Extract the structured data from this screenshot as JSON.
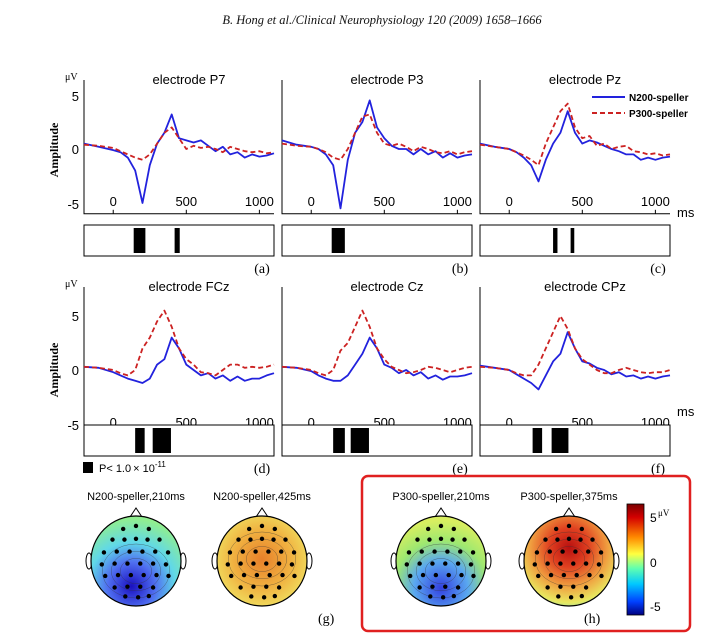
{
  "header": "B. Hong et al./Clinical Neurophysiology 120 (2009) 1658–1666",
  "legend": {
    "n200": "N200-speller",
    "p300": "P300-speller",
    "n200_color": "#2222dd",
    "p300_color": "#cc2222"
  },
  "sig_legend": {
    "prefix": "P< 1.0",
    "times": "×",
    "base": " 10",
    "exp": "-11"
  },
  "axes": {
    "unit": "μV",
    "ylabel": "Amplitude",
    "ms": "ms",
    "yticks": [
      "5",
      "0",
      "-5"
    ],
    "xticks": [
      "0",
      "500",
      "1000"
    ]
  },
  "panels": [
    {
      "title": "electrode P7",
      "label": "(a)",
      "sig": [
        [
          140,
          220
        ],
        [
          420,
          455
        ]
      ]
    },
    {
      "title": "electrode P3",
      "label": "(b)",
      "sig": [
        [
          140,
          230
        ]
      ]
    },
    {
      "title": "electrode Pz",
      "label": "(c)",
      "sig": [
        [
          300,
          330
        ],
        [
          420,
          445
        ]
      ]
    },
    {
      "title": "electrode FCz",
      "label": "(d)",
      "sig": [
        [
          150,
          215
        ],
        [
          270,
          395
        ]
      ]
    },
    {
      "title": "electrode Cz",
      "label": "(e)",
      "sig": [
        [
          150,
          230
        ],
        [
          270,
          395
        ]
      ]
    },
    {
      "title": "electrode CPz",
      "label": "(f)",
      "sig": [
        [
          160,
          225
        ],
        [
          290,
          405
        ]
      ]
    }
  ],
  "topomaps": {
    "g_label": "(g)",
    "h_label": "(h)",
    "maps": [
      {
        "title": "N200-speller,210ms",
        "kind": "neg"
      },
      {
        "title": "N200-speller,425ms",
        "kind": "pos"
      },
      {
        "title": "P300-speller,210ms",
        "kind": "neg"
      },
      {
        "title": "P300-speller,375ms",
        "kind": "pos"
      }
    ],
    "colorbar": {
      "top": "5",
      "unit": "μV",
      "mid": "0",
      "bottom": "-5"
    },
    "highlight_color": "#e02020"
  },
  "chart_data": {
    "type": "line",
    "ylabel": "Amplitude",
    "yunit": "μV",
    "xunit": "ms",
    "xlim": [
      -200,
      1100
    ],
    "ylim": [
      -5.5,
      5.5
    ],
    "xticks": [
      0,
      500,
      1000
    ],
    "yticks": [
      5,
      0,
      -5
    ],
    "x": [
      -200,
      -100,
      0,
      50,
      100,
      150,
      200,
      250,
      300,
      350,
      400,
      450,
      500,
      550,
      600,
      650,
      700,
      750,
      800,
      850,
      900,
      950,
      1000,
      1050,
      1100
    ],
    "panels": [
      {
        "electrode": "P7",
        "series": [
          {
            "name": "N200-speller",
            "values": [
              0.5,
              0.2,
              -0.1,
              -0.3,
              -0.8,
              -2.0,
              -5.0,
              -1.5,
              0.5,
              1.5,
              3.2,
              1.0,
              0.8,
              0.6,
              0.8,
              0.3,
              -0.2,
              0.2,
              -0.5,
              -0.3,
              -0.8,
              -0.5,
              -0.7,
              -0.6,
              -0.4
            ]
          },
          {
            "name": "P300-speller",
            "values": [
              0.4,
              0.3,
              0.1,
              -0.2,
              -0.5,
              -0.8,
              -1.0,
              -0.5,
              0.5,
              1.5,
              2.0,
              1.0,
              0.0,
              0.3,
              0.1,
              0.2,
              0.0,
              -0.3,
              0.2,
              0.0,
              -0.2,
              -0.3,
              -0.2,
              -0.4,
              -0.3
            ]
          }
        ]
      },
      {
        "electrode": "P3",
        "series": [
          {
            "name": "N200-speller",
            "values": [
              0.8,
              0.4,
              0.2,
              0.0,
              -0.5,
              -1.5,
              -5.5,
              -1.0,
              1.5,
              2.5,
              4.5,
              2.0,
              1.0,
              0.3,
              0.0,
              0.0,
              -0.5,
              0.0,
              -0.5,
              -0.2,
              -0.8,
              -0.4,
              -0.8,
              -0.6,
              -0.5
            ]
          },
          {
            "name": "P300-speller",
            "values": [
              0.5,
              0.3,
              0.2,
              0.0,
              -0.3,
              -0.8,
              -1.0,
              0.0,
              1.5,
              3.0,
              3.2,
              1.5,
              0.5,
              0.3,
              0.5,
              0.2,
              -0.2,
              0.2,
              0.0,
              -0.3,
              -0.4,
              -0.2,
              -0.5,
              -0.3,
              -0.2
            ]
          }
        ]
      },
      {
        "electrode": "Pz",
        "series": [
          {
            "name": "N200-speller",
            "values": [
              0.5,
              0.2,
              0.0,
              -0.3,
              -0.8,
              -1.5,
              -3.0,
              -1.0,
              0.5,
              1.5,
              3.5,
              1.5,
              0.5,
              0.8,
              0.6,
              0.3,
              0.0,
              -0.2,
              -0.5,
              -0.5,
              -1.0,
              -0.8,
              -1.0,
              -0.8,
              -0.7
            ]
          },
          {
            "name": "P300-speller",
            "values": [
              0.4,
              0.2,
              0.0,
              -0.3,
              -0.6,
              -1.0,
              -1.5,
              0.5,
              2.0,
              3.5,
              4.2,
              2.0,
              1.0,
              1.2,
              0.3,
              0.5,
              0.0,
              0.2,
              0.3,
              -0.2,
              -0.3,
              -0.5,
              -0.4,
              -0.6,
              -0.5
            ]
          }
        ]
      },
      {
        "electrode": "FCz",
        "series": [
          {
            "name": "N200-speller",
            "values": [
              0.3,
              0.2,
              -0.2,
              -0.5,
              -0.8,
              -1.0,
              -1.2,
              -0.8,
              0.5,
              1.0,
              3.0,
              2.0,
              0.5,
              0.0,
              -0.5,
              -0.3,
              -0.8,
              -0.5,
              -1.0,
              -0.6,
              -1.0,
              -0.8,
              -0.8,
              -0.5,
              -0.3
            ]
          },
          {
            "name": "P300-speller",
            "values": [
              0.3,
              0.2,
              0.0,
              -0.3,
              -0.5,
              0.0,
              2.0,
              3.0,
              4.5,
              5.5,
              4.0,
              2.0,
              1.0,
              0.5,
              -0.2,
              -0.3,
              -0.5,
              0.0,
              0.5,
              0.5,
              0.2,
              0.3,
              0.2,
              0.3,
              0.5
            ]
          }
        ]
      },
      {
        "electrode": "Cz",
        "series": [
          {
            "name": "N200-speller",
            "values": [
              0.3,
              0.2,
              -0.1,
              -0.5,
              -0.8,
              -1.0,
              -1.0,
              -0.5,
              0.5,
              1.5,
              3.0,
              2.0,
              0.5,
              0.2,
              -0.3,
              0.0,
              -0.5,
              -0.2,
              -0.8,
              -0.5,
              -0.9,
              -0.6,
              -0.6,
              -0.5,
              -0.3
            ]
          },
          {
            "name": "P300-speller",
            "values": [
              0.3,
              0.2,
              0.0,
              -0.3,
              -0.5,
              0.0,
              1.8,
              2.5,
              4.0,
              5.5,
              4.0,
              2.0,
              1.0,
              0.3,
              0.0,
              -0.3,
              -0.2,
              0.0,
              0.3,
              0.2,
              0.0,
              -0.2,
              0.0,
              0.2,
              0.3
            ]
          }
        ]
      },
      {
        "electrode": "CPz",
        "series": [
          {
            "name": "N200-speller",
            "values": [
              0.4,
              0.2,
              0.0,
              -0.4,
              -0.8,
              -1.2,
              -1.8,
              -0.5,
              0.8,
              1.5,
              3.5,
              2.0,
              0.8,
              0.6,
              0.2,
              0.0,
              -0.4,
              -0.2,
              -0.6,
              -0.5,
              -0.8,
              -0.6,
              -0.8,
              -0.6,
              -0.5
            ]
          },
          {
            "name": "P300-speller",
            "values": [
              0.3,
              0.2,
              0.0,
              -0.3,
              -0.5,
              -0.5,
              0.5,
              2.0,
              3.5,
              5.0,
              3.8,
              2.0,
              1.0,
              0.5,
              0.0,
              -0.3,
              -0.3,
              0.0,
              0.2,
              0.0,
              -0.2,
              -0.3,
              -0.2,
              -0.2,
              0.0
            ]
          }
        ]
      }
    ]
  }
}
